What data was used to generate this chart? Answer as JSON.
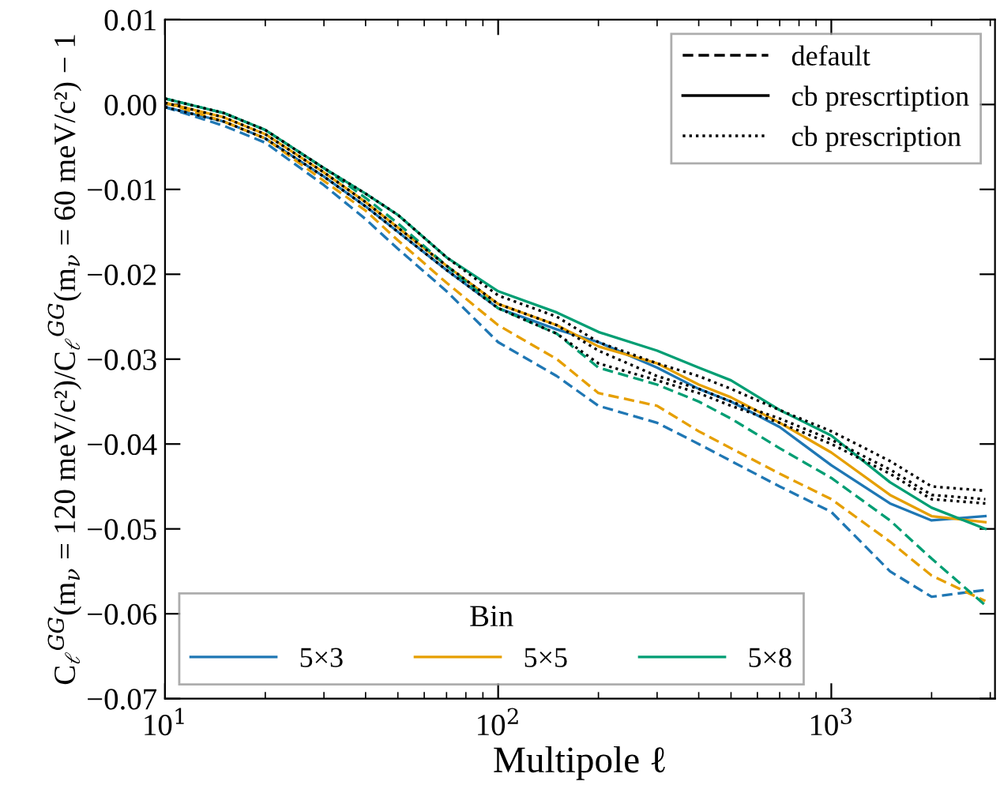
{
  "chart_data": {
    "type": "line",
    "xlabel": "Multipole ℓ",
    "ylabel": "C$_{ℓ}$$^{GG}$(m$_{ν}$ = 120 meV/c²)/C$_{ℓ}$$^{GG}$(m$_{ν}$ = 60 meV/c²) − 1",
    "legend_title": "Bin",
    "legend": "top right",
    "log": "x",
    "grid": false,
    "xlim": [
      10,
      3100
    ],
    "xticks": [
      {
        "value": 10,
        "label": "10$^{1}$"
      },
      {
        "value": 100,
        "label": "10$^{2}$"
      },
      {
        "value": 1000,
        "label": "10$^{3}$"
      }
    ],
    "ylim": [
      -0.07,
      0.01
    ],
    "yticks": [
      {
        "value": -0.07,
        "label": "−0.07"
      },
      {
        "value": -0.06,
        "label": "−0.06"
      },
      {
        "value": -0.05,
        "label": "−0.05"
      },
      {
        "value": -0.04,
        "label": "−0.04"
      },
      {
        "value": -0.03,
        "label": "−0.03"
      },
      {
        "value": -0.02,
        "label": "−0.02"
      },
      {
        "value": -0.01,
        "label": "−0.01"
      },
      {
        "value": 0.0,
        "label": "0.00"
      },
      {
        "value": 0.01,
        "label": "0.01"
      }
    ],
    "x": [
      10,
      15,
      20,
      30,
      40,
      50,
      70,
      100,
      150,
      200,
      300,
      400,
      500,
      700,
      1000,
      1500,
      2000,
      2900
    ],
    "series": [
      {
        "name": "default",
        "color": "#000000",
        "line_style": "dashed",
        "values": [
          null,
          null,
          null,
          null,
          null,
          null,
          null,
          null,
          null,
          null,
          null,
          null,
          null,
          null,
          null,
          null,
          null,
          null
        ]
      },
      {
        "name": "cb prescrtiption",
        "color": "#000000",
        "line_style": "solid",
        "values": [
          null,
          null,
          null,
          null,
          null,
          null,
          null,
          null,
          null,
          null,
          null,
          null,
          null,
          null,
          null,
          null,
          null,
          null
        ]
      },
      {
        "name": "cb prescription",
        "color": "#000000",
        "line_style": "dotted",
        "values": [
          null,
          null,
          null,
          null,
          null,
          null,
          null,
          null,
          null,
          null,
          null,
          null,
          null,
          null,
          null,
          null,
          null,
          null
        ]
      },
      {
        "name": "5×3",
        "color": "#1f77b4",
        "line_style": "solid",
        "values": [
          -0.0003,
          -0.002,
          -0.004,
          -0.0085,
          -0.012,
          -0.015,
          -0.0195,
          -0.024,
          -0.0265,
          -0.028,
          -0.031,
          -0.0335,
          -0.035,
          -0.038,
          -0.0425,
          -0.047,
          -0.049,
          -0.0485
        ]
      },
      {
        "name": "5×5",
        "color": "#e69f00",
        "line_style": "solid",
        "values": [
          0.0002,
          -0.0015,
          -0.0035,
          -0.008,
          -0.0115,
          -0.0145,
          -0.019,
          -0.0235,
          -0.026,
          -0.0285,
          -0.0305,
          -0.033,
          -0.0345,
          -0.0375,
          -0.041,
          -0.046,
          -0.0485,
          -0.0492
        ]
      },
      {
        "name": "5×8",
        "color": "#009e73",
        "line_style": "solid",
        "values": [
          0.0007,
          -0.001,
          -0.003,
          -0.0075,
          -0.0105,
          -0.013,
          -0.018,
          -0.022,
          -0.0245,
          -0.0268,
          -0.029,
          -0.031,
          -0.0325,
          -0.036,
          -0.039,
          -0.0445,
          -0.0475,
          -0.05
        ]
      },
      {
        "color": "#1f77b4",
        "line_style": "dashed",
        "values": [
          -0.0003,
          -0.0025,
          -0.0045,
          -0.0095,
          -0.0135,
          -0.017,
          -0.022,
          -0.028,
          -0.032,
          -0.0355,
          -0.0375,
          -0.04,
          -0.042,
          -0.045,
          -0.048,
          -0.055,
          -0.058,
          -0.0572
        ]
      },
      {
        "color": "#e69f00",
        "line_style": "dashed",
        "values": [
          0.0002,
          -0.002,
          -0.004,
          -0.009,
          -0.0125,
          -0.016,
          -0.021,
          -0.026,
          -0.03,
          -0.034,
          -0.0355,
          -0.0385,
          -0.0405,
          -0.0435,
          -0.0465,
          -0.0515,
          -0.0555,
          -0.0585
        ]
      },
      {
        "color": "#009e73",
        "line_style": "dashed",
        "values": [
          0.0007,
          -0.001,
          -0.003,
          -0.0075,
          -0.011,
          -0.014,
          -0.019,
          -0.024,
          -0.027,
          -0.031,
          -0.033,
          -0.035,
          -0.037,
          -0.0405,
          -0.044,
          -0.049,
          -0.0535,
          -0.059
        ]
      },
      {
        "color": "#000000",
        "line_style": "dotted",
        "values": [
          0.0007,
          -0.001,
          -0.003,
          -0.0075,
          -0.0105,
          -0.013,
          -0.018,
          -0.0225,
          -0.025,
          -0.028,
          -0.0305,
          -0.032,
          -0.0335,
          -0.036,
          -0.0385,
          -0.042,
          -0.045,
          -0.0455
        ]
      },
      {
        "color": "#000000",
        "line_style": "dotted",
        "values": [
          0.0002,
          -0.0015,
          -0.0035,
          -0.008,
          -0.0115,
          -0.0145,
          -0.019,
          -0.0235,
          -0.026,
          -0.029,
          -0.032,
          -0.0335,
          -0.035,
          -0.037,
          -0.0395,
          -0.043,
          -0.046,
          -0.0465
        ]
      },
      {
        "color": "#000000",
        "line_style": "dotted",
        "values": [
          -0.0003,
          -0.002,
          -0.004,
          -0.0085,
          -0.012,
          -0.015,
          -0.0195,
          -0.024,
          -0.027,
          -0.0305,
          -0.0325,
          -0.034,
          -0.0355,
          -0.0375,
          -0.04,
          -0.0435,
          -0.0465,
          -0.047
        ]
      }
    ]
  }
}
